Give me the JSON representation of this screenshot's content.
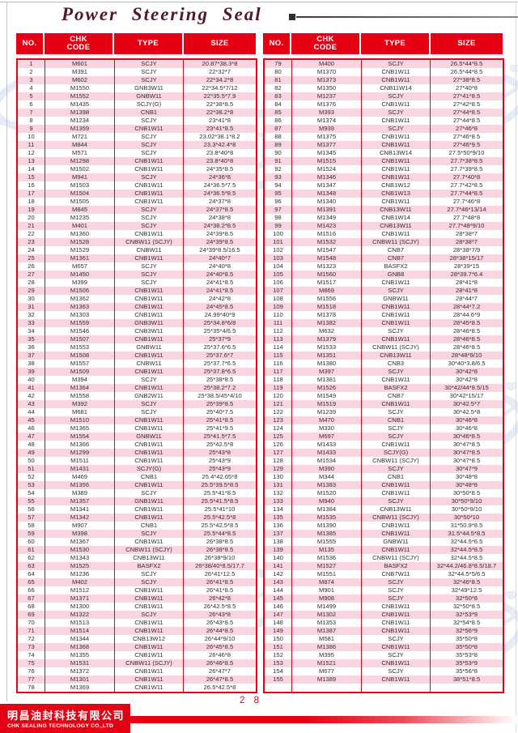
{
  "page": {
    "title": "Power Steering Seal",
    "page_number": "2 8"
  },
  "table": {
    "headers": [
      "NO.",
      "CHK\nCODE",
      "TYPE",
      "SIZE"
    ]
  },
  "left_table": {
    "rows": [
      [
        "1",
        "M601",
        "SCJY",
        "20.87*38.3*8"
      ],
      [
        "2",
        "M391",
        "SCJY",
        "22*32*7"
      ],
      [
        "3",
        "M602",
        "SCJY",
        "22*34.2*8"
      ],
      [
        "4",
        "M1550",
        "GNB3W11",
        "22*34.5*7/12"
      ],
      [
        "5",
        "M1552",
        "GNBW11",
        "22*35.5*7.9"
      ],
      [
        "6",
        "M1435",
        "SCJY(G)",
        "22*38*8.5"
      ],
      [
        "7",
        "M1398",
        "CNB1",
        "22*38.2*8"
      ],
      [
        "8",
        "M1234",
        "SCJY",
        "23*41*8"
      ],
      [
        "9",
        "M1359",
        "CNB1W11",
        "23*41*8.5"
      ],
      [
        "10",
        "M721",
        "SCJY",
        "23.02*38.1*8.2"
      ],
      [
        "11",
        "M844",
        "SCJY",
        "23.3*42.4*8"
      ],
      [
        "12",
        "M571",
        "SCJY",
        "23.8*40*8"
      ],
      [
        "13",
        "M1298",
        "CNB1W11",
        "23.8*40*8"
      ],
      [
        "14",
        "M1502",
        "CNB1W11",
        "24*35*8.5"
      ],
      [
        "15",
        "M941",
        "SCJY",
        "24*36*8"
      ],
      [
        "16",
        "M1503",
        "CNB1W11",
        "24*36.5*7.5"
      ],
      [
        "17",
        "M1504",
        "CNB1W11",
        "24*36.5*8.5"
      ],
      [
        "18",
        "M1505",
        "CNB1W11",
        "24*37*8"
      ],
      [
        "19",
        "M845",
        "SCJY",
        "24*37*8.5"
      ],
      [
        "20",
        "M1235",
        "SCJY",
        "24*38*8"
      ],
      [
        "21",
        "M401",
        "SCJY",
        "24*38.2*8.5"
      ],
      [
        "22",
        "M1360",
        "CNB1W11",
        "24*39*8.5"
      ],
      [
        "23",
        "M1528",
        "CNBW11 (SCJY)",
        "24*39*8.5"
      ],
      [
        "24",
        "M1529",
        "CNBW11",
        "24*39*8.5/16.5"
      ],
      [
        "25",
        "M1361",
        "CNB1W11",
        "24*40*7"
      ],
      [
        "26",
        "M657",
        "SCJY",
        "24*40*8"
      ],
      [
        "27",
        "M1450",
        "SCJY",
        "24*40*8.5"
      ],
      [
        "28",
        "M399",
        "SCJY",
        "24*41*8.5"
      ],
      [
        "29",
        "M1506",
        "CNB1W11",
        "24*41*8.5"
      ],
      [
        "30",
        "M1362",
        "CNB1W11",
        "24*42*8"
      ],
      [
        "31",
        "M1363",
        "CNB1W11",
        "24*45*8.5"
      ],
      [
        "32",
        "M1303",
        "CNB1W11",
        "24.99*40*9"
      ],
      [
        "33",
        "M1559",
        "GNB3W11",
        "25*34.8*6/8"
      ],
      [
        "34",
        "M1546",
        "CNB3W11",
        "25*35*4/6.5"
      ],
      [
        "35",
        "M1507",
        "CNB1W11",
        "25*37*9"
      ],
      [
        "36",
        "M1553",
        "GNBW11",
        "25*37.6*6.5"
      ],
      [
        "37",
        "M1508",
        "CNB1W11",
        "25*37.6*7"
      ],
      [
        "38",
        "M1557",
        "CNBW11",
        "25*37.7*6.5"
      ],
      [
        "39",
        "M1509",
        "CNB1W11",
        "25*37.8*6.5"
      ],
      [
        "40",
        "M394",
        "SCJY",
        "25*38*8.5"
      ],
      [
        "41",
        "M1364",
        "CNB1W11",
        "25*38.2*7.2"
      ],
      [
        "42",
        "M1558",
        "GNB2W11",
        "25*38.5/45*4/10"
      ],
      [
        "43",
        "M392",
        "SCJY",
        "25*39*8.5"
      ],
      [
        "44",
        "M681",
        "SCJY",
        "25*40*7.5"
      ],
      [
        "45",
        "M1510",
        "CNB1W11",
        "25*41*8.5"
      ],
      [
        "46",
        "M1365",
        "CNB1W11",
        "25*41*9.5"
      ],
      [
        "47",
        "M1554",
        "GNBW11",
        "25*41.5*7.5"
      ],
      [
        "48",
        "M1366",
        "CNB1W11",
        "25*42.5*8"
      ],
      [
        "49",
        "M1299",
        "CNB1W11",
        "25*43*8"
      ],
      [
        "50",
        "M1511",
        "CNB1W11",
        "25*43*9"
      ],
      [
        "51",
        "M1431",
        "SCJY(G)",
        "25*43*9"
      ],
      [
        "52",
        "M469",
        "CNB1",
        "25.4*42.65*8"
      ],
      [
        "53",
        "M1356",
        "CNB1W11",
        "25.5*39.5*8.5"
      ],
      [
        "54",
        "M389",
        "SCJY",
        "25.5*41*8.5"
      ],
      [
        "55",
        "M1357",
        "GNB1W11",
        "25.5*41.5*8.5"
      ],
      [
        "56",
        "M1341",
        "CNB1W11",
        "25.5*41*10"
      ],
      [
        "57",
        "M1342",
        "CNB1W11",
        "25.5*42.5*8"
      ],
      [
        "58",
        "M907",
        "CNB1",
        "25.5*42.5*8.5"
      ],
      [
        "59",
        "M398",
        "SCJY",
        "25.5*44*8.5"
      ],
      [
        "60",
        "M1367",
        "CNB1W11",
        "26*38*8.5"
      ],
      [
        "61",
        "M1530",
        "CNBW11 (SCJY)",
        "26*38*8.5"
      ],
      [
        "62",
        "M1343",
        "CNB13W11",
        "26*38*9/10"
      ],
      [
        "63",
        "M1525",
        "BASFX2",
        "26*38/40*8.5/17.7"
      ],
      [
        "64",
        "M1236",
        "SCJY",
        "26*41*12.5"
      ],
      [
        "65",
        "M402",
        "SCJY",
        "26*41*8.5"
      ],
      [
        "66",
        "M1512",
        "CNB1W11",
        "26*41*8.5"
      ],
      [
        "67",
        "M1371",
        "CNB1W11",
        "26*42*8"
      ],
      [
        "68",
        "M1300",
        "CNB1W11",
        "26*42.5*8.5"
      ],
      [
        "69",
        "M1322",
        "SCJY",
        "26*43*8"
      ],
      [
        "70",
        "M1513",
        "CNB1W11",
        "26*43*8.5"
      ],
      [
        "71",
        "M1514",
        "CNB1W11",
        "26*44*8.5"
      ],
      [
        "72",
        "M1344",
        "CNB13W12",
        "26*44*9/10"
      ],
      [
        "73",
        "M1368",
        "CNB1W11",
        "26*45*8.5"
      ],
      [
        "74",
        "M1355",
        "CNB1W11",
        "26*46*8"
      ],
      [
        "75",
        "M1531",
        "CNBW11 (SCJY)",
        "26*46*8.5"
      ],
      [
        "76",
        "M1372",
        "CNB1W11",
        "26*47*7"
      ],
      [
        "77",
        "M1301",
        "CNB1W11",
        "26*47*8.5"
      ],
      [
        "78",
        "M1369",
        "CNB1W11",
        "26.5*42.5*8"
      ]
    ]
  },
  "right_table": {
    "rows": [
      [
        "79",
        "M400",
        "SCJY",
        "26.5*44*8.5"
      ],
      [
        "80",
        "M1370",
        "CNB1W11",
        "26.5*44*8.5"
      ],
      [
        "81",
        "M1373",
        "CNB1W11",
        "27*38*8.5"
      ],
      [
        "82",
        "M1350",
        "CNB11W14",
        "27*40*8"
      ],
      [
        "83",
        "M1237",
        "SCJY",
        "27*41*8.5"
      ],
      [
        "84",
        "M1376",
        "CNB1W11",
        "27*42*8.5"
      ],
      [
        "85",
        "M393",
        "SCJY",
        "27*44*8.5"
      ],
      [
        "86",
        "M1374",
        "CNB1W11",
        "27*44*8.5"
      ],
      [
        "87",
        "M939",
        "SCJY",
        "27*46*8"
      ],
      [
        "88",
        "M1375",
        "CNB1W11",
        "27*46*8.5"
      ],
      [
        "89",
        "M1377",
        "CNB1W11",
        "27*46*9.5"
      ],
      [
        "90",
        "M1345",
        "CNB13W14",
        "27.5*50*9/10"
      ],
      [
        "91",
        "M1515",
        "CNB1W11",
        "27.7*38*8.5"
      ],
      [
        "92",
        "M1524",
        "CNB1W11",
        "27.7*39*8.5"
      ],
      [
        "93",
        "M1346",
        "CNB1W11",
        "27.7*40*8"
      ],
      [
        "94",
        "M1347",
        "CNB1W12",
        "27.7*42*8.5"
      ],
      [
        "95",
        "M1348",
        "CNB1W13",
        "27.7*44*8.5"
      ],
      [
        "96",
        "M1340",
        "CNB1W11",
        "27.7*46*8"
      ],
      [
        "97",
        "M1391",
        "CNB13W11",
        "27.7*46*13/14"
      ],
      [
        "98",
        "M1349",
        "CNB1W14",
        "27.7*48*8"
      ],
      [
        "99",
        "M1423",
        "CNB13W11",
        "27.7*48*9/10"
      ],
      [
        "100",
        "M1516",
        "CNB1W11",
        "28*38*7"
      ],
      [
        "101",
        "M1532",
        "CNBW11 (SCJY)",
        "28*38*7"
      ],
      [
        "102",
        "M1547",
        "CNB7",
        "28*38*7/9"
      ],
      [
        "103",
        "M1548",
        "CNB7",
        "28*38*15/17"
      ],
      [
        "104",
        "M1323",
        "BASFX2",
        "28*39*15"
      ],
      [
        "105",
        "M1560",
        "GNB8",
        "28*39.7*6.4"
      ],
      [
        "106",
        "M1517",
        "CNB1W11",
        "28*41*8"
      ],
      [
        "107",
        "M869",
        "SCJY",
        "28*41*8"
      ],
      [
        "108",
        "M1556",
        "GNBW11",
        "28*44*7"
      ],
      [
        "109",
        "M1518",
        "CNB1W11",
        "28*44*7.2"
      ],
      [
        "110",
        "M1378",
        "CNB1W11",
        "28*44.6*9"
      ],
      [
        "111",
        "M1382",
        "CNB1W11",
        "28*45*8.5"
      ],
      [
        "112",
        "M632",
        "SCJY",
        "28*46*8.5"
      ],
      [
        "113",
        "M1379",
        "CNB1W11",
        "28*46*8.5"
      ],
      [
        "114",
        "M1533",
        "CNBW11 (SCJY)",
        "28*46*8.5"
      ],
      [
        "115",
        "M1351",
        "CNB13W11",
        "28*48*9/10"
      ],
      [
        "116",
        "M1380",
        "CNB3",
        "30*40*3.8/6.5"
      ],
      [
        "117",
        "M397",
        "SCJY",
        "30*42*8"
      ],
      [
        "118",
        "M1381",
        "CNB1W11",
        "30*42*8"
      ],
      [
        "119",
        "M1526",
        "BASFX2",
        "30*42/44*8.5/15"
      ],
      [
        "120",
        "M1549",
        "CNB7",
        "30*42*15/17"
      ],
      [
        "121",
        "M1519",
        "CNB1W11",
        "30*42.5*7"
      ],
      [
        "122",
        "M1239",
        "SCJY",
        "30*42.5*8"
      ],
      [
        "123",
        "M470",
        "CNB1",
        "30*46*8"
      ],
      [
        "124",
        "M330",
        "SCJY",
        "30*46*8"
      ],
      [
        "125",
        "M697",
        "SCJY",
        "30*46*8.5"
      ],
      [
        "126",
        "M1433",
        "CNB1W11",
        "30*47*8.5"
      ],
      [
        "127",
        "M1433",
        "SCJY(G)",
        "30*47*8.5"
      ],
      [
        "128",
        "M1534",
        "CNBW11 (SCJY)",
        "30*47*8.5"
      ],
      [
        "129",
        "M390",
        "SCJY",
        "30*47*9"
      ],
      [
        "130",
        "M344",
        "CNB1",
        "30*48*8"
      ],
      [
        "131",
        "M1383",
        "CNB1W11",
        "30*48*8"
      ],
      [
        "132",
        "M1520",
        "CNB1W11",
        "30*50*8.5"
      ],
      [
        "133",
        "M940",
        "SCJY",
        "30*50*9/10"
      ],
      [
        "134",
        "M1384",
        "CNB13W11",
        "30*50*9/10"
      ],
      [
        "135",
        "M1535",
        "CNBW11 (SCJY)",
        "30*50*10"
      ],
      [
        "136",
        "M1390",
        "CNB1W11",
        "31*50.9*8.5"
      ],
      [
        "137",
        "M1385",
        "CNB1W11",
        "31.5*44.5*8.5"
      ],
      [
        "138",
        "M1555",
        "GNBW11",
        "32*44.5*6.5"
      ],
      [
        "139",
        "M135",
        "CNB1W11",
        "32*44.5*8.5"
      ],
      [
        "140",
        "M1536",
        "CNBW11 (SCJY)",
        "32*44.5*8.5"
      ],
      [
        "141",
        "M1527",
        "BASFX2",
        "32*44.2/46.8*8.5/18.7"
      ],
      [
        "142",
        "M1551",
        "CNB7W11",
        "32*44.5*5/6.5"
      ],
      [
        "143",
        "M874",
        "SCJY",
        "32*46*8.5"
      ],
      [
        "144",
        "M901",
        "SCJY",
        "32*49*12.5"
      ],
      [
        "145",
        "M908",
        "SCJY",
        "32*50*8"
      ],
      [
        "146",
        "M1499",
        "CNB1W11",
        "32*50*8.5"
      ],
      [
        "147",
        "M1302",
        "CNB1W11",
        "32*53*9"
      ],
      [
        "148",
        "M1353",
        "CNB1W11",
        "32*54*8.5"
      ],
      [
        "149",
        "M1387",
        "CNB1W11",
        "32*56*9"
      ],
      [
        "150",
        "M581",
        "SCJY",
        "35*50*8"
      ],
      [
        "151",
        "M1386",
        "CNB1W11",
        "35*50*8"
      ],
      [
        "152",
        "M395",
        "SCJY",
        "35*53*8"
      ],
      [
        "153",
        "M1521",
        "CNB1W11",
        "35*53*9"
      ],
      [
        "154",
        "M677",
        "SCJY",
        "35*56*8"
      ],
      [
        "155",
        "M1389",
        "CNB1W11",
        "38*51*8.5"
      ]
    ]
  },
  "footer": {
    "company_cn": "明昌油封科技有限公司",
    "company_en": "CHK SEALING TECHNOLOGY CO.,LTD"
  },
  "watermark": {
    "text": "CHK",
    "registered_mark": "®"
  },
  "colors": {
    "red": "#e60014",
    "pink_stripe": "#fad4df",
    "title_maroon": "#54182e",
    "watermark_blue": "#b6c6e2"
  }
}
